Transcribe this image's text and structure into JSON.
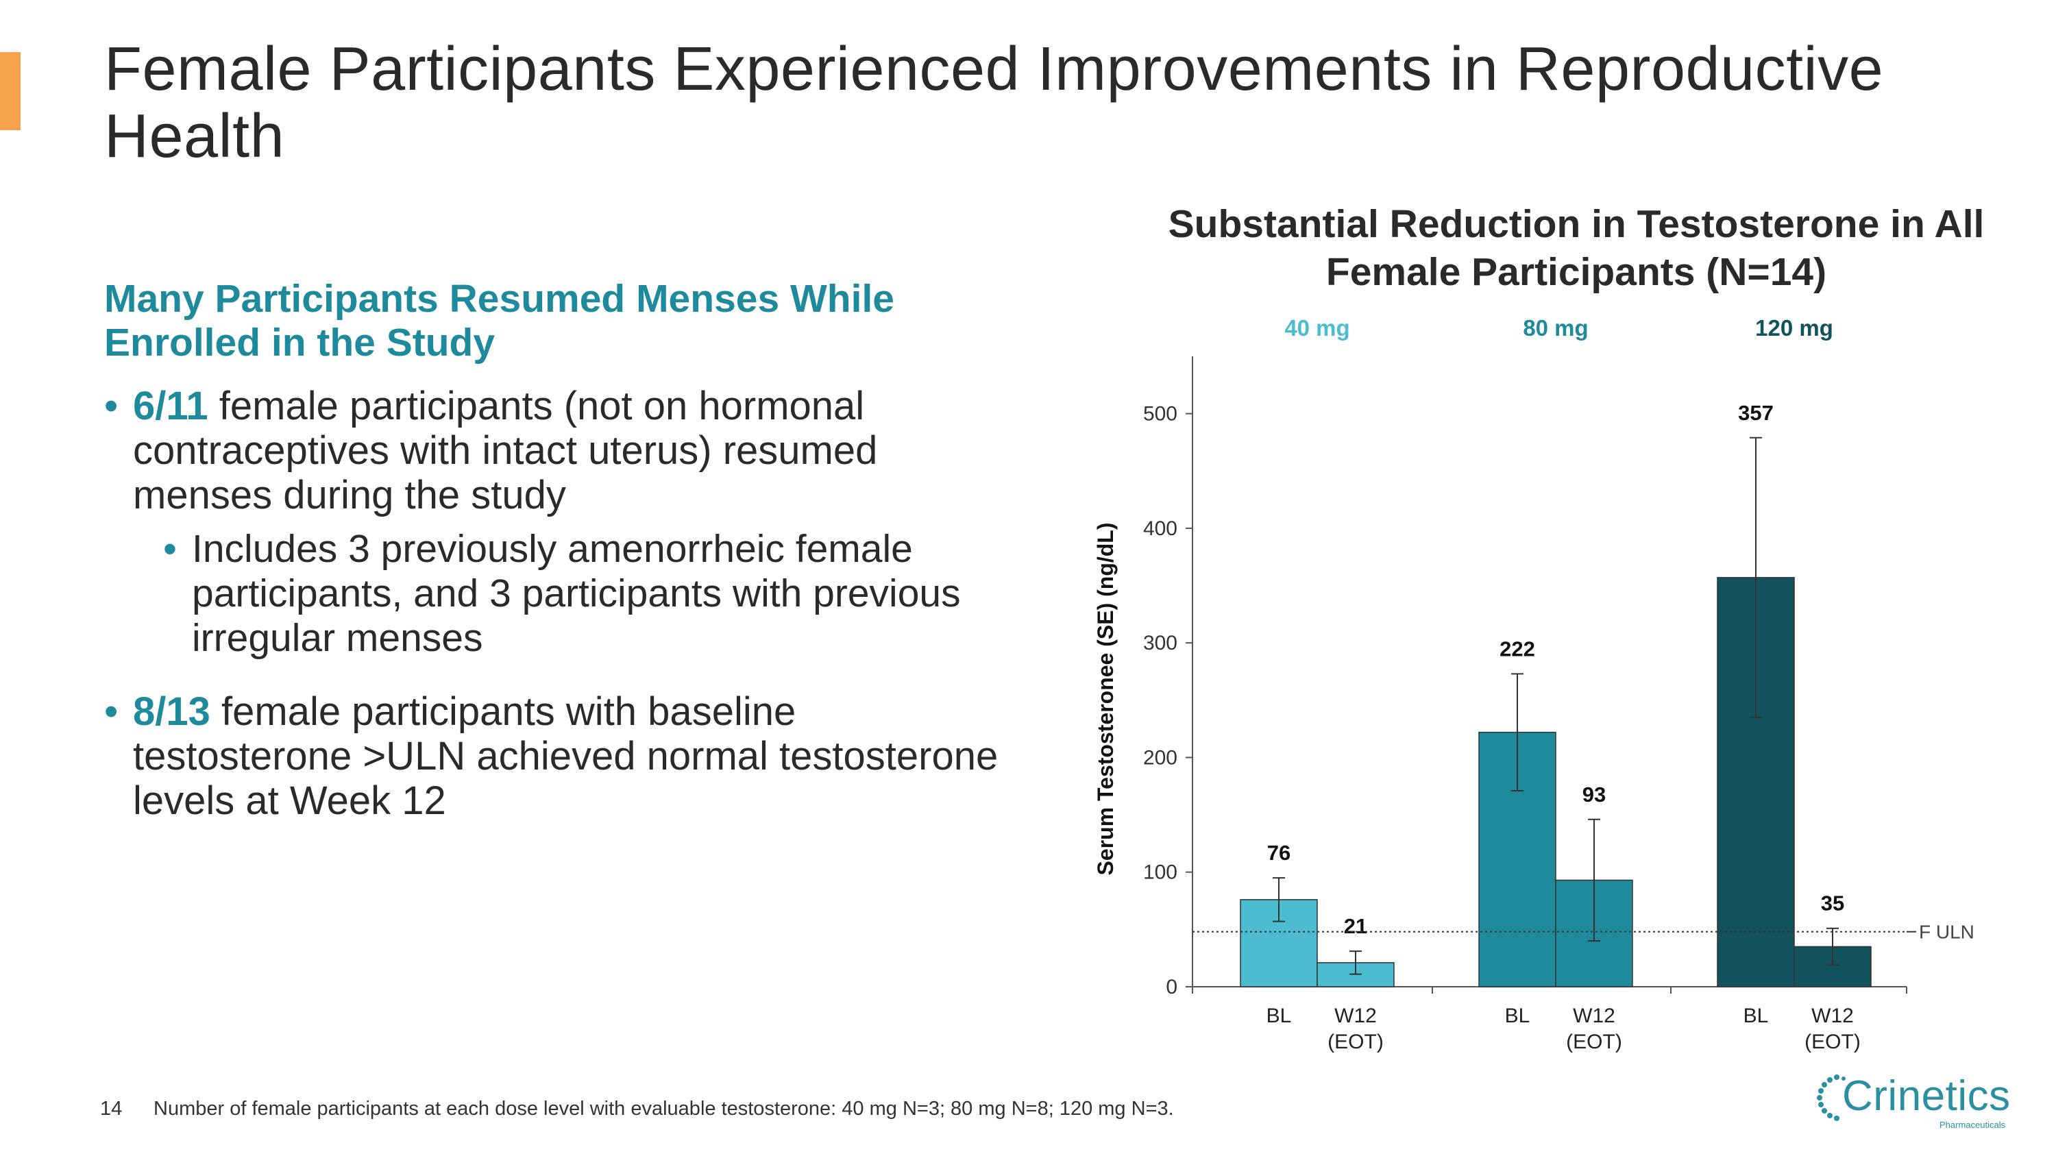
{
  "slide": {
    "title": "Female Participants Experienced Improvements in Reproductive Health",
    "accent_color": "#f4a24c",
    "page_number": "14",
    "footnote": "Number of female participants at each dose level with evaluable testosterone: 40 mg N=3; 80 mg N=8; 120 mg N=3."
  },
  "left": {
    "heading": "Many Participants Resumed Menses While Enrolled in the Study",
    "bullets": [
      {
        "highlight": "6/11",
        "text": " female participants (not on hormonal contraceptives with intact uterus) resumed menses during the study"
      },
      {
        "text": "Includes 3 previously amenorrheic female participants, and 3 participants with previous irregular menses"
      },
      {
        "highlight": "8/13",
        "text": " female participants with baseline testosterone >ULN achieved normal testosterone levels at Week 12"
      }
    ]
  },
  "chart_data": {
    "type": "bar",
    "title": "Substantial Reduction in Testosterone in All Female Participants (N=14)",
    "ylabel": "Serum Testosteronee (SE) (ng/dL)",
    "xlabel": "",
    "ylim": [
      0,
      550
    ],
    "yticks": [
      0,
      100,
      200,
      300,
      400,
      500
    ],
    "reference_line": {
      "label": "F ULN",
      "value": 48
    },
    "groups": [
      {
        "label": "40 mg",
        "color": "#4cbcd0",
        "label_color": "#4cbcd0",
        "bars": [
          {
            "category": "BL",
            "value": 76,
            "error_low": 57,
            "error_high": 95
          },
          {
            "category": "W12 (EOT)",
            "value": 21,
            "error_low": 11,
            "error_high": 31
          }
        ]
      },
      {
        "label": "80 mg",
        "color": "#1e8a9b",
        "label_color": "#1e8a9b",
        "bars": [
          {
            "category": "BL",
            "value": 222,
            "error_low": 171,
            "error_high": 273
          },
          {
            "category": "W12 (EOT)",
            "value": 93,
            "error_low": 40,
            "error_high": 146
          }
        ]
      },
      {
        "label": "120 mg",
        "color": "#12525c",
        "label_color": "#12525c",
        "bars": [
          {
            "category": "BL",
            "value": 357,
            "error_low": 235,
            "error_high": 479
          },
          {
            "category": "W12 (EOT)",
            "value": 35,
            "error_low": 19,
            "error_high": 51
          }
        ]
      }
    ]
  },
  "logo": {
    "name": "Crinetics",
    "subtitle": "Pharmaceuticals",
    "color": "#2a8fa0"
  }
}
